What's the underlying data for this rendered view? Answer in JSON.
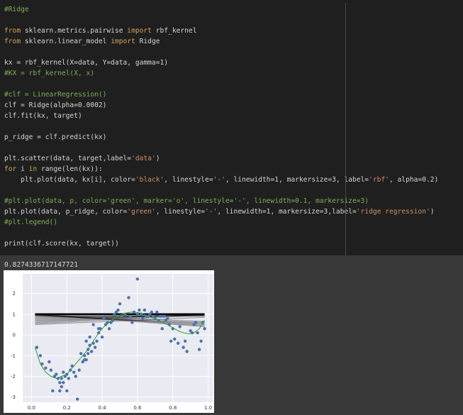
{
  "code_lines": [
    [
      [
        "cm",
        "#Ridge"
      ]
    ],
    [],
    [
      [
        "kw",
        "from"
      ],
      [
        "tx",
        " sklearn.metrics.pairwise "
      ],
      [
        "kw",
        "import"
      ],
      [
        "tx",
        " rbf_kernel"
      ]
    ],
    [
      [
        "kw",
        "from"
      ],
      [
        "tx",
        " sklearn.linear_model "
      ],
      [
        "kw",
        "import"
      ],
      [
        "tx",
        " Ridge"
      ]
    ],
    [],
    [
      [
        "tx",
        "kx = rbf_kernel(X=data, Y=data, gamma=1)"
      ]
    ],
    [
      [
        "cm",
        "#KX = rbf_kernel(X, x)"
      ]
    ],
    [],
    [
      [
        "cm",
        "#clf = LinearRegression()"
      ]
    ],
    [
      [
        "tx",
        "clf = Ridge(alpha=0.0002)"
      ]
    ],
    [
      [
        "tx",
        "clf.fit(kx, target)"
      ]
    ],
    [],
    [
      [
        "tx",
        "p_ridge = clf.predict(kx)"
      ]
    ],
    [],
    [
      [
        "tx",
        "plt.scatter(data, target,label="
      ],
      [
        "str",
        "'data'"
      ],
      [
        "tx",
        ")"
      ]
    ],
    [
      [
        "kw",
        "for"
      ],
      [
        "tx",
        " i "
      ],
      [
        "kw",
        "in"
      ],
      [
        "tx",
        " range(len(kx)):"
      ]
    ],
    [
      [
        "tx",
        "    plt.plot(data, kx[i], color="
      ],
      [
        "str",
        "'black'"
      ],
      [
        "tx",
        ", linestyle="
      ],
      [
        "str",
        "'-'"
      ],
      [
        "tx",
        ", linewidth=1, markersize=3, label="
      ],
      [
        "str",
        "'rbf'"
      ],
      [
        "tx",
        ", alpha=0.2)"
      ]
    ],
    [],
    [
      [
        "cm",
        "#plt.plot(data, p, color='green', marker='o', linestyle='-', linewidth=0.1, markersize=3)"
      ]
    ],
    [
      [
        "tx",
        "plt.plot(data, p_ridge, color="
      ],
      [
        "str",
        "'green'"
      ],
      [
        "tx",
        ", linestyle="
      ],
      [
        "str",
        "'-'"
      ],
      [
        "tx",
        ", linewidth=1, markersize=3,label="
      ],
      [
        "str",
        "'ridge regression'"
      ],
      [
        "tx",
        ")"
      ]
    ],
    [
      [
        "cm",
        "#plt.legend()"
      ]
    ],
    [],
    [
      [
        "tx",
        "print(clf.score(kx, target))"
      ]
    ]
  ],
  "output": "0.8274336717147721",
  "colors": {
    "code_bg": "#1f1f1f",
    "output_bg": "#383838",
    "keyword": "#d0a35d",
    "string": "#cf8e6d",
    "comment": "#7fae57",
    "text": "#d4d4d4",
    "plot_bg": "#eaeaf2",
    "scatter": "#4c72b0",
    "ridge_line": "#2ca02c",
    "rbf_lines": "#000000"
  },
  "chart_data": {
    "type": "scatter",
    "xlim": [
      -0.05,
      1.03
    ],
    "ylim": [
      -3.25,
      2.95
    ],
    "x_ticks": [
      "0.0",
      "0.2",
      "0.4",
      "0.6",
      "0.8",
      "1.0"
    ],
    "y_ticks": [
      "2",
      "1",
      "0",
      "-1",
      "-2",
      "-3"
    ],
    "grid": true,
    "series": [
      {
        "type": "scatter",
        "x": [
          0.03,
          0.05,
          0.06,
          0.08,
          0.1,
          0.11,
          0.12,
          0.13,
          0.14,
          0.15,
          0.16,
          0.16,
          0.17,
          0.17,
          0.18,
          0.18,
          0.19,
          0.2,
          0.2,
          0.21,
          0.22,
          0.23,
          0.24,
          0.25,
          0.26,
          0.27,
          0.28,
          0.29,
          0.3,
          0.3,
          0.31,
          0.31,
          0.32,
          0.32,
          0.33,
          0.33,
          0.34,
          0.35,
          0.35,
          0.36,
          0.37,
          0.38,
          0.38,
          0.39,
          0.4,
          0.41,
          0.42,
          0.43,
          0.44,
          0.45,
          0.46,
          0.47,
          0.48,
          0.49,
          0.5,
          0.51,
          0.53,
          0.55,
          0.56,
          0.57,
          0.58,
          0.6,
          0.6,
          0.61,
          0.62,
          0.63,
          0.64,
          0.65,
          0.66,
          0.67,
          0.68,
          0.69,
          0.7,
          0.71,
          0.72,
          0.73,
          0.74,
          0.75,
          0.76,
          0.77,
          0.78,
          0.79,
          0.8,
          0.81,
          0.83,
          0.84,
          0.86,
          0.87,
          0.88,
          0.9,
          0.91,
          0.92,
          0.93,
          0.94,
          0.95,
          0.96,
          0.97,
          0.98
        ],
        "y": [
          -0.6,
          -1.0,
          -1.4,
          -1.6,
          -1.3,
          -1.7,
          -2.7,
          -2.0,
          -1.9,
          -2.1,
          -2.3,
          -2.7,
          -2.1,
          -2.5,
          -1.8,
          -2.3,
          -2.0,
          -2.7,
          -1.9,
          -2.1,
          -1.7,
          -1.5,
          -1.8,
          -2.0,
          -3.1,
          -1.7,
          -0.9,
          -1.3,
          -1.0,
          -1.2,
          -0.3,
          -1.2,
          -0.9,
          -0.7,
          -0.5,
          -0.1,
          -0.8,
          -0.4,
          0.5,
          -0.6,
          -0.3,
          0.1,
          0.3,
          0.3,
          -0.1,
          0.8,
          0.5,
          0.6,
          0.3,
          0.6,
          0.7,
          1.0,
          1.1,
          1.2,
          1.5,
          0.9,
          1.0,
          1.8,
          0.9,
          0.6,
          1.1,
          1.0,
          2.7,
          1.2,
          1.0,
          0.8,
          1.2,
          0.9,
          0.9,
          1.0,
          1.1,
          0.9,
          0.8,
          1.1,
          0.7,
          0.9,
          0.3,
          0.9,
          0.7,
          0.8,
          0.5,
          -0.3,
          0.3,
          -0.2,
          -0.4,
          0.4,
          -0.6,
          -0.3,
          -0.8,
          0.2,
          0.1,
          0.5,
          0.6,
          0.1,
          -0.7,
          -0.3,
          0.6,
          0.3
        ]
      }
    ],
    "ridge_regression": {
      "x": [
        0.02,
        0.05,
        0.08,
        0.11,
        0.14,
        0.17,
        0.2,
        0.23,
        0.26,
        0.29,
        0.32,
        0.35,
        0.38,
        0.41,
        0.44,
        0.47,
        0.5,
        0.53,
        0.56,
        0.59,
        0.62,
        0.65,
        0.68,
        0.71,
        0.74,
        0.77,
        0.8,
        0.83,
        0.86,
        0.89,
        0.92,
        0.95,
        0.98
      ],
      "y": [
        -0.6,
        -1.4,
        -1.8,
        -2.0,
        -2.1,
        -2.0,
        -1.9,
        -1.6,
        -1.3,
        -1.0,
        -0.7,
        -0.3,
        0.1,
        0.4,
        0.6,
        0.8,
        0.95,
        1.05,
        1.1,
        1.1,
        1.05,
        0.95,
        0.85,
        0.75,
        0.6,
        0.5,
        0.35,
        0.2,
        0.1,
        0.05,
        0.1,
        0.3,
        0.7
      ]
    },
    "rbf_band": {
      "x": [
        0.02,
        0.98
      ],
      "top_start": [
        1.0,
        1.0
      ],
      "lines": [
        [
          0.95,
          0.9
        ],
        [
          0.9,
          0.93
        ],
        [
          0.85,
          0.95
        ],
        [
          0.8,
          0.97
        ],
        [
          0.75,
          0.98
        ],
        [
          0.7,
          0.99
        ],
        [
          0.65,
          1.0
        ],
        [
          0.6,
          1.0
        ],
        [
          0.55,
          0.95
        ],
        [
          0.5,
          0.85
        ],
        [
          0.92,
          0.6
        ],
        [
          0.95,
          0.55
        ],
        [
          0.98,
          0.5
        ],
        [
          1.0,
          0.45
        ],
        [
          1.0,
          0.4
        ],
        [
          0.97,
          0.65
        ]
      ]
    }
  }
}
